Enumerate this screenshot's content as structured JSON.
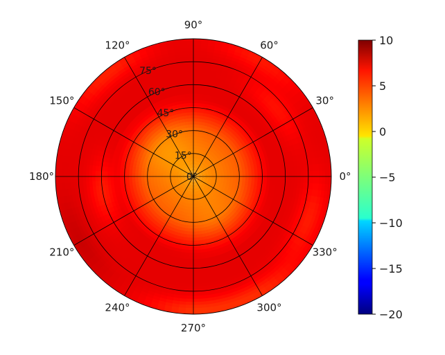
{
  "chart_data": {
    "type": "heatmap",
    "subtype": "polar",
    "title": "",
    "angular_ticks": [
      {
        "deg": 0,
        "label": "0°"
      },
      {
        "deg": 30,
        "label": "30°"
      },
      {
        "deg": 60,
        "label": "60°"
      },
      {
        "deg": 90,
        "label": "90°"
      },
      {
        "deg": 120,
        "label": "120°"
      },
      {
        "deg": 150,
        "label": "150°"
      },
      {
        "deg": 180,
        "label": "180°"
      },
      {
        "deg": 210,
        "label": "210°"
      },
      {
        "deg": 240,
        "label": "240°"
      },
      {
        "deg": 270,
        "label": "270°"
      },
      {
        "deg": 300,
        "label": "300°"
      },
      {
        "deg": 330,
        "label": "330°"
      }
    ],
    "radial_ticks": [
      {
        "value": 0,
        "label": "0°"
      },
      {
        "value": 15,
        "label": "15°"
      },
      {
        "value": 30,
        "label": "30°"
      },
      {
        "value": 45,
        "label": "45°"
      },
      {
        "value": 60,
        "label": "60°"
      },
      {
        "value": 75,
        "label": "75°"
      }
    ],
    "rlim": [
      0,
      90
    ],
    "grid": true,
    "colormap": "jet",
    "colorbar": {
      "range": [
        -20,
        10
      ],
      "ticks": [
        {
          "value": 10,
          "label": "10"
        },
        {
          "value": 5,
          "label": "5"
        },
        {
          "value": 0,
          "label": "0"
        },
        {
          "value": -5,
          "label": "−5"
        },
        {
          "value": -10,
          "label": "−10"
        },
        {
          "value": -15,
          "label": "−15"
        },
        {
          "value": -20,
          "label": "−20"
        }
      ]
    },
    "field": {
      "center_value": 1.5,
      "edge_value": 7,
      "core_radius": 30,
      "falloff_width": 20,
      "notes_regions": [
        {
          "theta": 190,
          "r": 60,
          "value": 5.5
        },
        {
          "theta": 340,
          "r": 80,
          "value": 5.5
        },
        {
          "theta": 270,
          "r": 88,
          "value": 5.0
        },
        {
          "theta": 300,
          "r": 88,
          "value": 5.2
        },
        {
          "theta": 210,
          "r": 85,
          "value": 7.8
        },
        {
          "theta": 130,
          "r": 88,
          "value": 5.3
        },
        {
          "theta": 40,
          "r": 70,
          "value": 5.8
        },
        {
          "theta": 60,
          "r": 88,
          "value": 5.6
        }
      ]
    }
  }
}
